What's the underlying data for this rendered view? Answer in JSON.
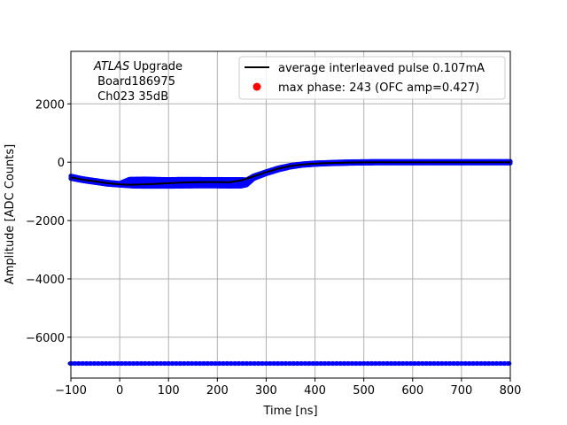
{
  "chart_data": {
    "type": "scatter",
    "title": "",
    "xlabel": "Time [ns]",
    "ylabel": "Amplitude [ADC Counts]",
    "xlim": [
      -100,
      800
    ],
    "ylim": [
      -7400,
      3800
    ],
    "xticks": [
      -100,
      0,
      100,
      200,
      300,
      400,
      500,
      600,
      700,
      800
    ],
    "xtick_labels": [
      "−100",
      "0",
      "100",
      "200",
      "300",
      "400",
      "500",
      "600",
      "700",
      "800"
    ],
    "yticks": [
      -6000,
      -4000,
      -2000,
      0,
      2000
    ],
    "ytick_labels": [
      "−6000",
      "−4000",
      "−2000",
      "0",
      "2000"
    ],
    "grid": true,
    "legend_position": "top-right",
    "annotation": {
      "italic": "ATLAS",
      "line1_rest": " Upgrade",
      "line2": " Board186975",
      "line3": " Ch023 35dB"
    },
    "series": [
      {
        "name": "average interleaved pulse 0.107mA",
        "kind": "line",
        "color": "#000000",
        "x": [
          -100,
          -75,
          -50,
          -25,
          0,
          25,
          50,
          75,
          100,
          125,
          150,
          175,
          200,
          225,
          250,
          275,
          300,
          325,
          350,
          375,
          400,
          425,
          450,
          475,
          500,
          525,
          550,
          575,
          600,
          625,
          650,
          675,
          700,
          725,
          750,
          775,
          800
        ],
        "y": [
          -520,
          -600,
          -660,
          -720,
          -760,
          -770,
          -760,
          -740,
          -720,
          -700,
          -690,
          -680,
          -680,
          -690,
          -620,
          -480,
          -340,
          -220,
          -130,
          -80,
          -50,
          -30,
          -20,
          -10,
          -5,
          0,
          0,
          0,
          0,
          0,
          0,
          0,
          0,
          0,
          0,
          0,
          0
        ]
      },
      {
        "name": "",
        "kind": "scatter",
        "color": "#0000ff",
        "upper_band": {
          "x": [
            -100,
            -75,
            -50,
            -25,
            0,
            20,
            50,
            75,
            100,
            125,
            150,
            175,
            200,
            225,
            250,
            260,
            275,
            300,
            325,
            350,
            375,
            400,
            425,
            450,
            475,
            500,
            525,
            550,
            575,
            600,
            625,
            650,
            675,
            700,
            725,
            750,
            775,
            800
          ],
          "y": [
            -470,
            -560,
            -620,
            -680,
            -720,
            -580,
            -570,
            -580,
            -590,
            -580,
            -580,
            -585,
            -585,
            -590,
            -590,
            -600,
            -460,
            -320,
            -190,
            -100,
            -50,
            -20,
            -5,
            10,
            20,
            25,
            30,
            30,
            30,
            30,
            30,
            30,
            30,
            30,
            30,
            30,
            30,
            30
          ]
        },
        "lower_band": {
          "x": [
            -100,
            -75,
            -50,
            -25,
            0,
            25,
            50,
            75,
            100,
            125,
            150,
            175,
            200,
            225,
            250,
            260,
            275,
            300,
            325,
            350,
            375,
            400,
            425,
            450,
            475,
            500,
            525,
            550,
            575,
            600,
            625,
            650,
            675,
            700,
            725,
            750,
            775,
            800
          ],
          "y": [
            -560,
            -640,
            -700,
            -760,
            -790,
            -820,
            -830,
            -830,
            -830,
            -825,
            -820,
            -820,
            -820,
            -825,
            -820,
            -780,
            -560,
            -400,
            -270,
            -170,
            -110,
            -80,
            -60,
            -50,
            -40,
            -35,
            -30,
            -30,
            -30,
            -30,
            -30,
            -30,
            -30,
            -30,
            -30,
            -30,
            -30,
            -30
          ]
        },
        "baseline_row": {
          "x_start": -100,
          "x_end": 800,
          "y": -6900
        }
      },
      {
        "name": "max phase: 243 (OFC amp=0.427)",
        "kind": "marker",
        "color": "#ff0000"
      }
    ]
  }
}
